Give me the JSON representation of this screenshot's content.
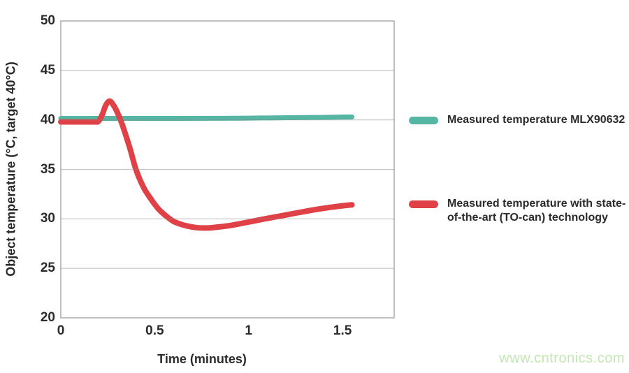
{
  "watermark": {
    "text": "www.cntronics.com",
    "color": "#c3e7b2"
  },
  "chart_data": {
    "type": "line",
    "title": "",
    "xlabel": "Time (minutes)",
    "ylabel": "Object temperature (°C, target 40°C)",
    "xlim": [
      0,
      1.775
    ],
    "ylim": [
      20,
      50
    ],
    "grid": "horizontal",
    "gridline_color": "#bdbdbd",
    "plot_border_color": "#a6a6a6",
    "x_ticks": {
      "values": [
        0,
        0.5,
        1,
        1.5
      ],
      "labels": [
        "0",
        "0.5",
        "1",
        "1.5"
      ]
    },
    "y_ticks": {
      "values": [
        50,
        45,
        40,
        35,
        30,
        25,
        20
      ],
      "labels": [
        "50",
        "45",
        "40",
        "35",
        "30",
        "25",
        "20"
      ]
    },
    "series": [
      {
        "name": "Measured temperature MLX90632",
        "color": "#55b6a3",
        "line_width": 7,
        "x": [
          0,
          0.2,
          0.4,
          0.6,
          0.8,
          1.0,
          1.1,
          1.2,
          1.3,
          1.4,
          1.5,
          1.55
        ],
        "y": [
          40.15,
          40.15,
          40.15,
          40.15,
          40.16,
          40.18,
          40.2,
          40.22,
          40.24,
          40.26,
          40.29,
          40.3
        ]
      },
      {
        "name": "Measured temperature with state-of-the-art (TO-can) technology",
        "color": "#e04146",
        "line_width": 8,
        "x": [
          0,
          0.05,
          0.1,
          0.15,
          0.18,
          0.2,
          0.22,
          0.24,
          0.26,
          0.28,
          0.3,
          0.32,
          0.34,
          0.37,
          0.4,
          0.44,
          0.48,
          0.52,
          0.56,
          0.6,
          0.64,
          0.68,
          0.72,
          0.76,
          0.8,
          0.85,
          0.9,
          0.95,
          1.0,
          1.05,
          1.1,
          1.15,
          1.2,
          1.25,
          1.3,
          1.35,
          1.4,
          1.45,
          1.5,
          1.55
        ],
        "y": [
          39.8,
          39.8,
          39.8,
          39.8,
          39.8,
          39.85,
          40.5,
          41.5,
          41.9,
          41.5,
          40.8,
          39.9,
          38.8,
          37.0,
          35.0,
          33.2,
          32.0,
          31.0,
          30.3,
          29.75,
          29.45,
          29.25,
          29.12,
          29.08,
          29.1,
          29.2,
          29.32,
          29.5,
          29.68,
          29.87,
          30.05,
          30.22,
          30.4,
          30.58,
          30.75,
          30.92,
          31.07,
          31.2,
          31.32,
          31.42
        ]
      }
    ],
    "legend": {
      "position": "right",
      "entries": [
        {
          "label": "Measured temperature MLX90632",
          "label_lines": [
            "Measured temperature MLX90632"
          ],
          "color": "#55b6a3"
        },
        {
          "label": "Measured temperature with state-of-the-art (TO-can) technology",
          "label_lines": [
            "Measured temperature with state-",
            "of-the-art (TO-can) technology"
          ],
          "color": "#e04146"
        }
      ]
    }
  }
}
